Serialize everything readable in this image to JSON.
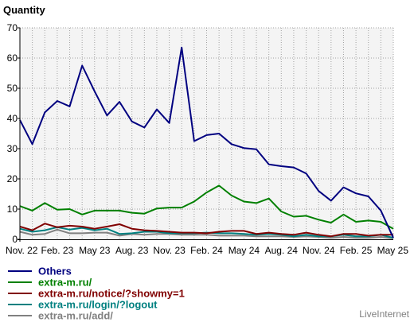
{
  "chart_data": {
    "type": "line",
    "ylabel": "Quantity",
    "ylim": [
      0,
      70
    ],
    "yticks": [
      0,
      10,
      20,
      30,
      40,
      50,
      60,
      70
    ],
    "x_tick_labels": [
      "Nov. 22",
      "Feb. 23",
      "May 23",
      "Aug. 23",
      "Nov. 23",
      "Feb. 24",
      "May 24",
      "Aug. 24",
      "Nov. 24",
      "Feb. 25",
      "May 25"
    ],
    "x_tick_index": [
      0,
      3,
      6,
      9,
      12,
      15,
      18,
      21,
      24,
      27,
      30
    ],
    "grid": true,
    "legend_position": "bottom-left",
    "series": [
      {
        "name": "Others",
        "color": "#000080",
        "values": [
          39.5,
          31.5,
          42,
          45.8,
          44,
          57.5,
          49,
          41,
          45.5,
          39,
          37,
          43,
          38.5,
          63.5,
          32.5,
          34.5,
          35,
          31.5,
          30.2,
          29.8,
          24.8,
          24.2,
          23.8,
          21.8,
          16,
          12.8,
          17.2,
          15.2,
          14.2,
          9.5,
          0.5
        ]
      },
      {
        "name": "extra-m.ru/",
        "color": "#008000",
        "values": [
          11,
          9.5,
          12,
          9.8,
          10,
          8.2,
          9.5,
          9.5,
          9.5,
          8.8,
          8.5,
          10.2,
          10.5,
          10.5,
          12.5,
          15.5,
          17.8,
          14.5,
          12.5,
          12,
          13.5,
          9.2,
          7.5,
          7.8,
          6.5,
          5.5,
          8.2,
          5.8,
          6.2,
          5.8,
          3.5
        ]
      },
      {
        "name": "extra-m.ru/notice/?showmy=1",
        "color": "#800000",
        "values": [
          4.2,
          3,
          5.2,
          4,
          4.5,
          4.2,
          3.5,
          4.2,
          5,
          3.5,
          3,
          2.8,
          2.5,
          2.2,
          2.2,
          2,
          2.5,
          2.8,
          2.8,
          1.8,
          2.2,
          1.8,
          1.5,
          2.2,
          1.5,
          1,
          1.8,
          1.8,
          1.2,
          1.5,
          1.5
        ]
      },
      {
        "name": "extra-m.ru/login/?logout",
        "color": "#008080",
        "values": [
          3.5,
          2.5,
          3,
          4,
          3.2,
          3.8,
          3,
          3.5,
          1.8,
          2,
          2.5,
          2.5,
          2,
          2,
          2,
          2.2,
          2,
          2,
          1.8,
          1.5,
          1.8,
          1.5,
          1,
          1.5,
          1,
          1,
          1.5,
          1,
          1,
          1.5,
          0.5
        ]
      },
      {
        "name": "extra-m.ru/add/",
        "color": "#808080",
        "values": [
          2.5,
          1.5,
          1.8,
          3.2,
          2,
          2,
          2.2,
          2.2,
          1.2,
          1.8,
          1.5,
          1.8,
          1.8,
          1.5,
          1.5,
          1.5,
          1.2,
          1.2,
          1.2,
          1,
          1,
          1,
          0.8,
          1,
          0.8,
          0.5,
          0.8,
          0.5,
          0.5,
          0.8,
          0.3
        ]
      }
    ]
  },
  "credit": "LiveInternet"
}
